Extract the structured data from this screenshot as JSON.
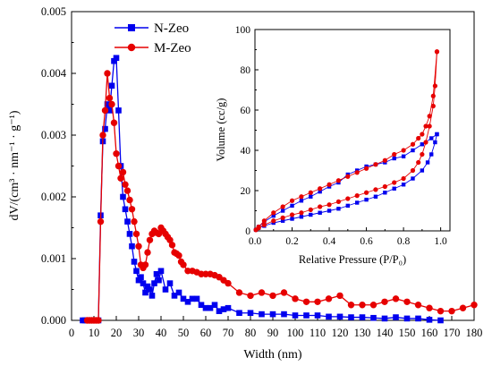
{
  "chart_data": [
    {
      "type": "line",
      "xlabel": "Width (nm)",
      "ylabel": "dV/(cm³ · nm⁻¹ · g⁻¹)",
      "xlim": [
        0,
        180
      ],
      "ylim": [
        0,
        0.005
      ],
      "x_ticks": [
        "0",
        "10",
        "20",
        "30",
        "40",
        "50",
        "60",
        "70",
        "80",
        "90",
        "100",
        "110",
        "120",
        "130",
        "140",
        "150",
        "160",
        "170",
        "180"
      ],
      "y_ticks": [
        "0.000",
        "0.001",
        "0.002",
        "0.003",
        "0.004",
        "0.005"
      ],
      "legend": [
        "N-Zeo",
        "M-Zeo"
      ],
      "legend_position": "top-left",
      "series": [
        {
          "name": "N-Zeo",
          "color": "#0000ee",
          "marker": "square",
          "x": [
            5,
            6,
            7,
            8,
            9,
            10,
            11,
            12,
            13,
            14,
            15,
            16,
            17,
            18,
            19,
            20,
            21,
            22,
            23,
            24,
            25,
            26,
            27,
            28,
            29,
            30,
            31,
            32,
            33,
            34,
            35,
            36,
            37,
            38,
            39,
            40,
            42,
            44,
            46,
            48,
            50,
            52,
            54,
            56,
            58,
            60,
            62,
            64,
            66,
            68,
            70,
            75,
            80,
            85,
            90,
            95,
            100,
            105,
            110,
            115,
            120,
            125,
            130,
            135,
            140,
            145,
            150,
            155,
            160,
            165
          ],
          "y": [
            0,
            0,
            0,
            0,
            0,
            0,
            0,
            0,
            0.0017,
            0.0029,
            0.0031,
            0.0035,
            0.0034,
            0.0038,
            0.0042,
            0.00425,
            0.0034,
            0.0025,
            0.002,
            0.0018,
            0.0016,
            0.0014,
            0.0012,
            0.00095,
            0.0008,
            0.00065,
            0.0007,
            0.0006,
            0.00045,
            0.00055,
            0.0005,
            0.0004,
            0.0006,
            0.00075,
            0.00065,
            0.0008,
            0.0005,
            0.0006,
            0.0004,
            0.00045,
            0.00035,
            0.0003,
            0.00035,
            0.00035,
            0.00025,
            0.0002,
            0.0002,
            0.00025,
            0.00015,
            0.00018,
            0.0002,
            0.00012,
            0.00012,
            0.0001,
            0.0001,
            0.0001,
            8e-05,
            8e-05,
            8e-05,
            6e-05,
            6e-05,
            5e-05,
            5e-05,
            4e-05,
            3e-05,
            5e-05,
            3e-05,
            3e-05,
            1e-05,
            0
          ]
        },
        {
          "name": "M-Zeo",
          "color": "#e60000",
          "marker": "circle",
          "x": [
            7,
            8,
            9,
            10,
            11,
            12,
            13,
            14,
            15,
            16,
            17,
            18,
            19,
            20,
            21,
            22,
            23,
            24,
            25,
            26,
            27,
            28,
            29,
            30,
            31,
            32,
            33,
            34,
            35,
            36,
            37,
            38,
            39,
            40,
            41,
            42,
            43,
            44,
            45,
            46,
            47,
            48,
            49,
            50,
            52,
            54,
            56,
            58,
            60,
            62,
            64,
            66,
            68,
            70,
            75,
            80,
            85,
            90,
            95,
            100,
            105,
            110,
            115,
            120,
            125,
            130,
            135,
            140,
            145,
            150,
            155,
            160,
            165,
            170,
            175,
            180
          ],
          "y": [
            0,
            0,
            0,
            0,
            0,
            0,
            0.0016,
            0.003,
            0.0034,
            0.004,
            0.0036,
            0.0035,
            0.0032,
            0.0027,
            0.0025,
            0.0023,
            0.0024,
            0.0022,
            0.0021,
            0.00195,
            0.0018,
            0.0016,
            0.0014,
            0.0012,
            0.0009,
            0.00085,
            0.0009,
            0.0011,
            0.0013,
            0.0014,
            0.00145,
            0.00142,
            0.0014,
            0.0015,
            0.00145,
            0.0014,
            0.00135,
            0.0013,
            0.00122,
            0.0011,
            0.00108,
            0.00105,
            0.00095,
            0.0009,
            0.0008,
            0.0008,
            0.00078,
            0.00075,
            0.00075,
            0.00075,
            0.00073,
            0.0007,
            0.00065,
            0.0006,
            0.00045,
            0.0004,
            0.00045,
            0.0004,
            0.00045,
            0.00035,
            0.0003,
            0.0003,
            0.00035,
            0.0004,
            0.00025,
            0.00025,
            0.00025,
            0.0003,
            0.00035,
            0.0003,
            0.00025,
            0.0002,
            0.00015,
            0.00015,
            0.0002,
            0.00025
          ]
        }
      ]
    },
    {
      "type": "line",
      "xlabel": "Relative Pressure (P/P₀)",
      "ylabel": "Volume (cc/g)",
      "xlim": [
        0,
        1.05
      ],
      "ylim": [
        0,
        100
      ],
      "x_ticks": [
        "0.0",
        "0.2",
        "0.4",
        "0.6",
        "0.8",
        "1.0"
      ],
      "y_ticks": [
        "0",
        "20",
        "40",
        "60",
        "80",
        "100"
      ],
      "series": [
        {
          "name": "N-Zeo adsorption",
          "color": "#0000ee",
          "marker": "square",
          "x": [
            0.005,
            0.02,
            0.05,
            0.1,
            0.15,
            0.2,
            0.25,
            0.3,
            0.35,
            0.4,
            0.45,
            0.5,
            0.55,
            0.6,
            0.65,
            0.7,
            0.75,
            0.8,
            0.85,
            0.9,
            0.93,
            0.95,
            0.97,
            0.98
          ],
          "y": [
            0.5,
            1.5,
            2.5,
            4,
            5,
            6,
            7,
            8,
            9,
            10,
            11,
            12.5,
            14,
            15.5,
            17,
            19,
            21,
            23,
            26,
            30,
            34,
            38,
            44,
            48
          ]
        },
        {
          "name": "N-Zeo desorption",
          "color": "#0000ee",
          "marker": "square",
          "x": [
            0.98,
            0.95,
            0.9,
            0.85,
            0.8,
            0.75,
            0.7,
            0.65,
            0.6,
            0.55,
            0.5,
            0.45,
            0.4,
            0.35,
            0.3,
            0.25,
            0.2,
            0.15,
            0.1,
            0.05,
            0.02
          ],
          "y": [
            48,
            46,
            43,
            40,
            37,
            36,
            34,
            33,
            32,
            30,
            28,
            24,
            22,
            19.5,
            17,
            15,
            12.5,
            10,
            7.5,
            4.5,
            2
          ]
        },
        {
          "name": "M-Zeo adsorption",
          "color": "#e60000",
          "marker": "circle",
          "x": [
            0.005,
            0.02,
            0.05,
            0.1,
            0.15,
            0.2,
            0.25,
            0.3,
            0.35,
            0.4,
            0.45,
            0.5,
            0.55,
            0.6,
            0.65,
            0.7,
            0.75,
            0.8,
            0.85,
            0.88,
            0.9,
            0.92,
            0.94,
            0.96,
            0.97,
            0.98
          ],
          "y": [
            0.5,
            1.5,
            3,
            5,
            6.5,
            8,
            9,
            10.5,
            12,
            13,
            14.5,
            16,
            17.5,
            19,
            20.5,
            22,
            24,
            26,
            30,
            34,
            38,
            44,
            52,
            62,
            72,
            89
          ]
        },
        {
          "name": "M-Zeo desorption",
          "color": "#e60000",
          "marker": "circle",
          "x": [
            0.98,
            0.96,
            0.94,
            0.92,
            0.9,
            0.88,
            0.85,
            0.8,
            0.75,
            0.7,
            0.65,
            0.6,
            0.55,
            0.5,
            0.45,
            0.4,
            0.35,
            0.3,
            0.25,
            0.2,
            0.15,
            0.1,
            0.05,
            0.02
          ],
          "y": [
            89,
            67,
            57,
            52,
            48,
            46,
            43,
            40,
            38,
            35,
            33,
            31,
            29,
            27,
            25,
            23,
            21,
            19,
            17,
            15,
            12,
            9,
            5,
            2
          ]
        }
      ]
    }
  ]
}
